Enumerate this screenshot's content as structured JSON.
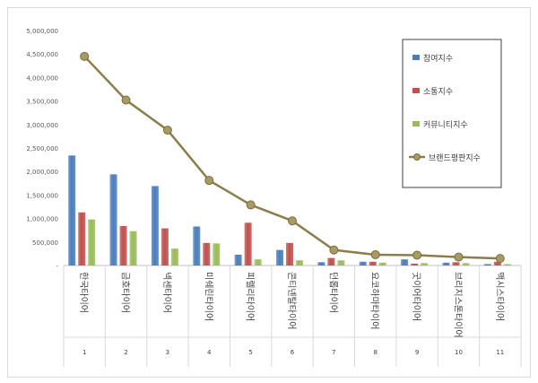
{
  "chart_data": {
    "type": "bar",
    "title": "",
    "xlabel": "",
    "ylabel": "",
    "ylim": [
      0,
      5000000
    ],
    "y_ticks": [
      "5,000,000",
      "4,500,000",
      "4,000,000",
      "3,500,000",
      "3,000,000",
      "2,500,000",
      "2,000,000",
      "1,500,000",
      "1,000,000",
      "500,000",
      "-"
    ],
    "grid": false,
    "legend_position": "top-right",
    "categories": [
      "한국타이어",
      "금호타이어",
      "넥센타이어",
      "미쉐린타이어",
      "피렐리타이어",
      "콘티넨탈타이어",
      "던롭타이어",
      "요코하마타이어",
      "굿이어타이어",
      "브리지스톤타이어",
      "맥시스타이어"
    ],
    "ranks": [
      "1",
      "2",
      "3",
      "4",
      "5",
      "6",
      "7",
      "8",
      "9",
      "10",
      "11"
    ],
    "series": [
      {
        "name": "참여지수",
        "type": "bar",
        "color": "#4a7ebb",
        "values": [
          2340000,
          1940000,
          1690000,
          830000,
          230000,
          330000,
          70000,
          80000,
          130000,
          60000,
          30000
        ]
      },
      {
        "name": "소통지수",
        "type": "bar",
        "color": "#c0504d",
        "values": [
          1130000,
          840000,
          790000,
          480000,
          910000,
          480000,
          160000,
          80000,
          40000,
          70000,
          80000
        ]
      },
      {
        "name": "커뮤니티지수",
        "type": "bar",
        "color": "#9bbb59",
        "values": [
          980000,
          730000,
          360000,
          470000,
          130000,
          110000,
          110000,
          60000,
          50000,
          50000,
          30000
        ]
      },
      {
        "name": "브랜드평판지수",
        "type": "line",
        "color": "#8b7d4c",
        "values": [
          4450000,
          3520000,
          2880000,
          1810000,
          1290000,
          950000,
          330000,
          230000,
          220000,
          180000,
          150000
        ]
      }
    ]
  }
}
